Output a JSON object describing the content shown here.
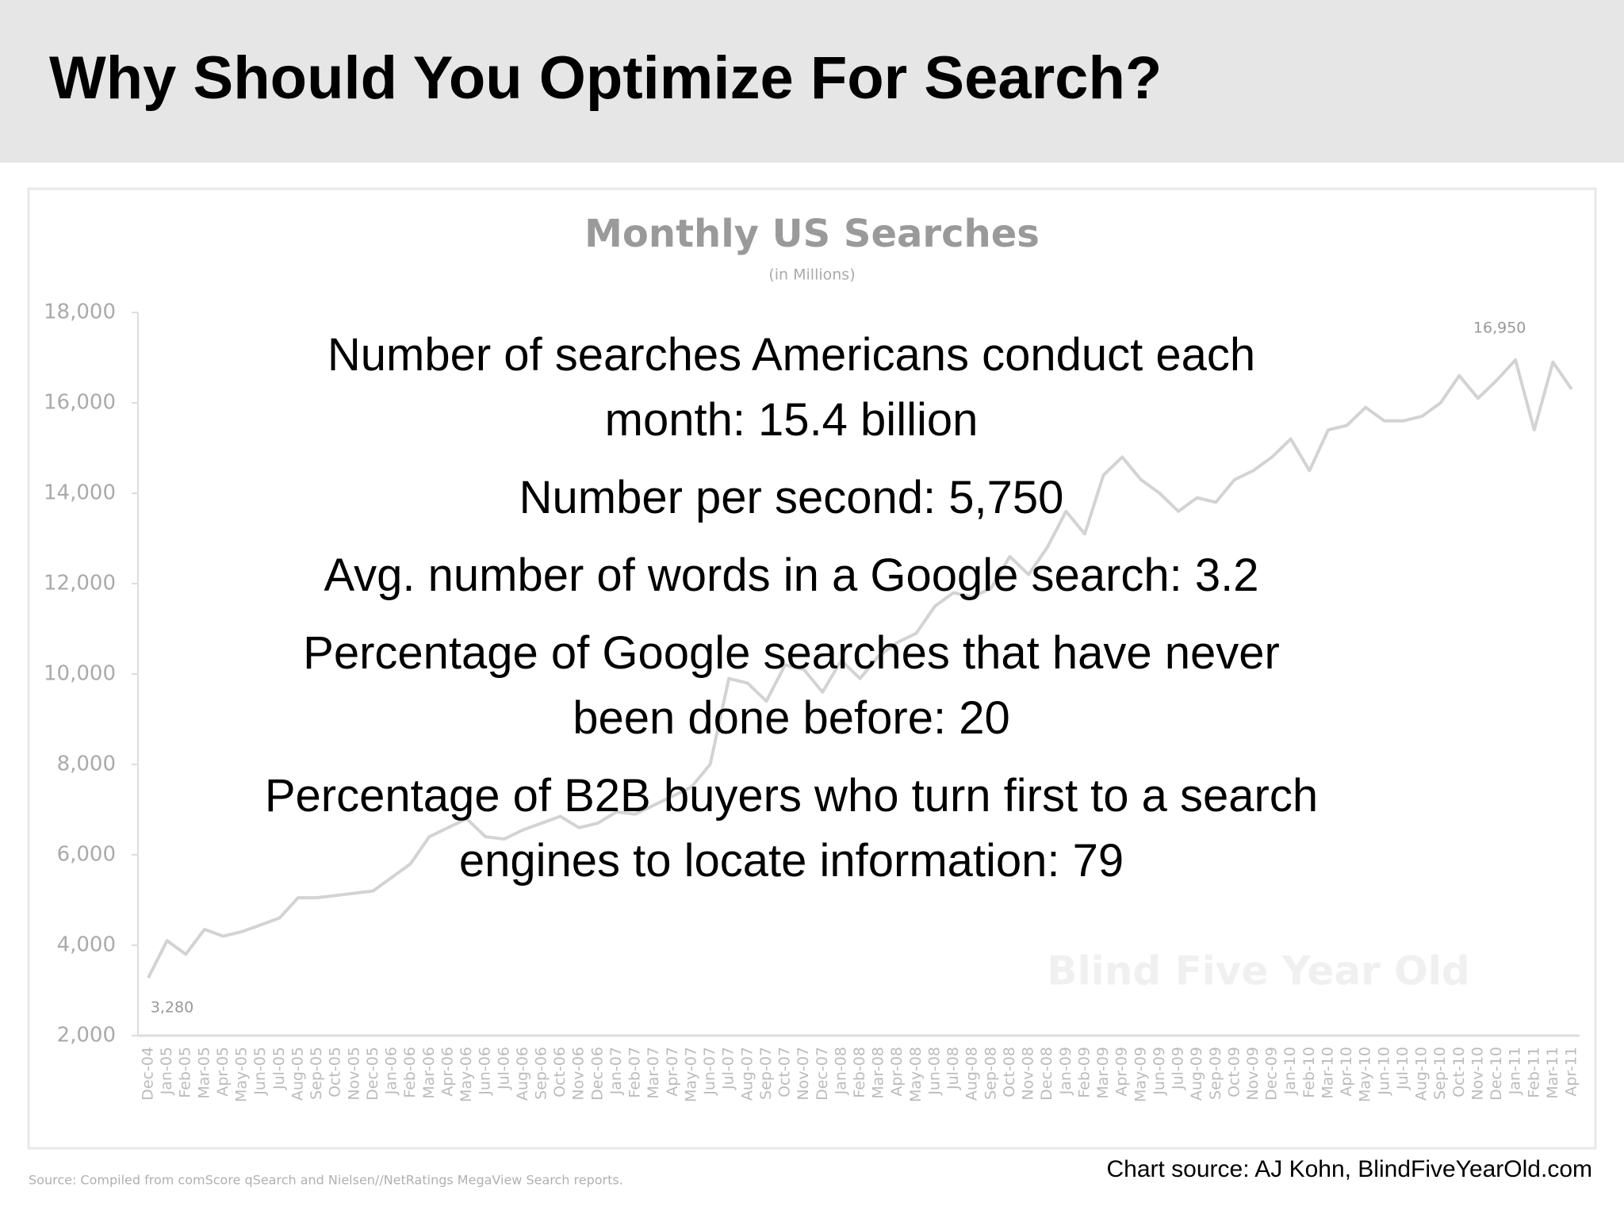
{
  "title": "Why Should You Optimize For Search?",
  "bullets": [
    "Number of searches Americans conduct each month: 15.4 billion",
    "Number per second: 5,750",
    "Avg. number of words in a Google search: 3.2",
    "Percentage of Google searches that have never been done before: 20",
    "Percentage of B2B buyers who turn first to a search engines to locate information: 79"
  ],
  "credit": "Chart source: AJ Kohn, BlindFiveYearOld.com",
  "chart_data": {
    "type": "line",
    "title": "Monthly US Searches",
    "subtitle": "(in Millions)",
    "watermark": "Blind Five Year Old",
    "source": "Source: Compiled from comScore qSearch and Nielsen//NetRatings MegaView Search reports.",
    "color": "#d3d3d3",
    "categories": [
      "Dec-04",
      "Jan-05",
      "Feb-05",
      "Mar-05",
      "Apr-05",
      "May-05",
      "Jun-05",
      "Jul-05",
      "Aug-05",
      "Sep-05",
      "Oct-05",
      "Nov-05",
      "Dec-05",
      "Jan-06",
      "Feb-06",
      "Mar-06",
      "Apr-06",
      "May-06",
      "Jun-06",
      "Jul-06",
      "Aug-06",
      "Sep-06",
      "Oct-06",
      "Nov-06",
      "Dec-06",
      "Jan-07",
      "Feb-07",
      "Mar-07",
      "Apr-07",
      "May-07",
      "Jun-07",
      "Jul-07",
      "Aug-07",
      "Sep-07",
      "Oct-07",
      "Nov-07",
      "Dec-07",
      "Jan-08",
      "Feb-08",
      "Mar-08",
      "Apr-08",
      "May-08",
      "Jun-08",
      "Jul-08",
      "Aug-08",
      "Sep-08",
      "Oct-08",
      "Nov-08",
      "Dec-08",
      "Jan-09",
      "Feb-09",
      "Mar-09",
      "Apr-09",
      "May-09",
      "Jun-09",
      "Jul-09",
      "Aug-09",
      "Sep-09",
      "Oct-09",
      "Nov-09",
      "Dec-09",
      "Jan-10",
      "Feb-10",
      "Mar-10",
      "Apr-10",
      "May-10",
      "Jun-10",
      "Jul-10",
      "Aug-10",
      "Sep-10",
      "Oct-10",
      "Nov-10",
      "Dec-10",
      "Jan-11",
      "Feb-11",
      "Mar-11",
      "Apr-11"
    ],
    "values": [
      3280,
      4100,
      3800,
      4350,
      4200,
      4300,
      4450,
      4600,
      5050,
      5050,
      5100,
      5150,
      5200,
      5500,
      5800,
      6400,
      6600,
      6800,
      6400,
      6350,
      6550,
      6700,
      6850,
      6600,
      6700,
      6950,
      6900,
      7100,
      7300,
      7500,
      8000,
      9900,
      9800,
      9400,
      10200,
      10100,
      9600,
      10300,
      9900,
      10400,
      10700,
      10900,
      11500,
      11800,
      11700,
      11900,
      12600,
      12200,
      12800,
      13600,
      13100,
      14400,
      14800,
      14300,
      14000,
      13600,
      13900,
      13800,
      14300,
      14500,
      14800,
      15200,
      14500,
      15400,
      15500,
      15900,
      15600,
      15600,
      15700,
      16000,
      16600,
      16100,
      16500,
      16950,
      15400,
      16900,
      16300
    ],
    "value_labels": [
      "3,280",
      null,
      null,
      null,
      null,
      null,
      null,
      null,
      null,
      null,
      null,
      null,
      null,
      null,
      null,
      null,
      null,
      null,
      null,
      null,
      null,
      null,
      null,
      null,
      null,
      null,
      null,
      null,
      null,
      null,
      null,
      null,
      null,
      null,
      null,
      null,
      null,
      null,
      null,
      null,
      null,
      null,
      null,
      null,
      null,
      null,
      null,
      null,
      null,
      null,
      null,
      null,
      null,
      null,
      null,
      null,
      null,
      null,
      null,
      null,
      null,
      null,
      null,
      null,
      null,
      null,
      null,
      null,
      null,
      null,
      null,
      null,
      null,
      "16,950",
      null,
      null,
      null
    ],
    "ylim": [
      2000,
      18000
    ],
    "yticks": [
      {
        "value": 2000,
        "label": "2,000"
      },
      {
        "value": 4000,
        "label": "4,000"
      },
      {
        "value": 6000,
        "label": "6,000"
      },
      {
        "value": 8000,
        "label": "8,000"
      },
      {
        "value": 10000,
        "label": "10,000"
      },
      {
        "value": 12000,
        "label": "12,000"
      },
      {
        "value": 14000,
        "label": "14,000"
      },
      {
        "value": 16000,
        "label": "16,000"
      },
      {
        "value": 18000,
        "label": "18,000"
      }
    ]
  }
}
